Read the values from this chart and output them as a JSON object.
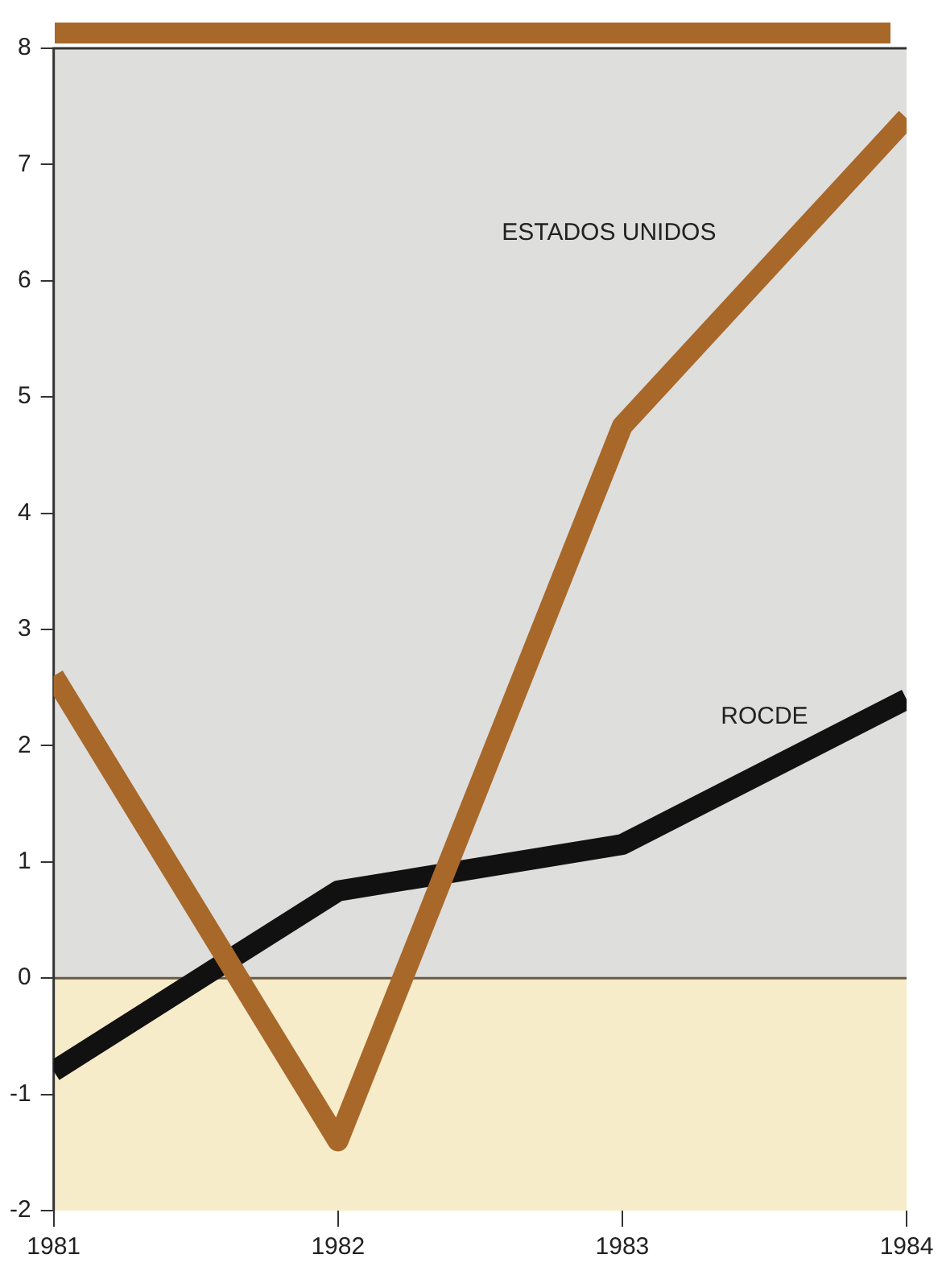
{
  "chart_data": {
    "type": "line",
    "x": [
      1981,
      1982,
      1983,
      1984
    ],
    "series": [
      {
        "name": "ESTADOS UNIDOS",
        "color": "#a8682a",
        "values": [
          2.6,
          -1.4,
          4.75,
          7.4
        ]
      },
      {
        "name": "ROCDE",
        "color": "#111111",
        "values": [
          -0.8,
          0.75,
          1.15,
          2.4
        ]
      }
    ],
    "xlim": [
      1981,
      1984
    ],
    "xticks": [
      1981,
      1982,
      1983,
      1984
    ],
    "ylim": [
      -2,
      8
    ],
    "yticks": [
      -2,
      -1,
      0,
      1,
      2,
      3,
      4,
      5,
      6,
      7,
      8
    ],
    "bands": [
      {
        "axis": "y",
        "from": 0,
        "to": 8,
        "color": "#dededc"
      },
      {
        "axis": "y",
        "from": -2,
        "to": 0,
        "color": "#f7ecca"
      }
    ],
    "ref_lines": [
      {
        "axis": "y",
        "value": 0,
        "color": "#6b5a40"
      }
    ],
    "grid": false,
    "legend": false,
    "marker": "none",
    "line_style": "solid"
  }
}
